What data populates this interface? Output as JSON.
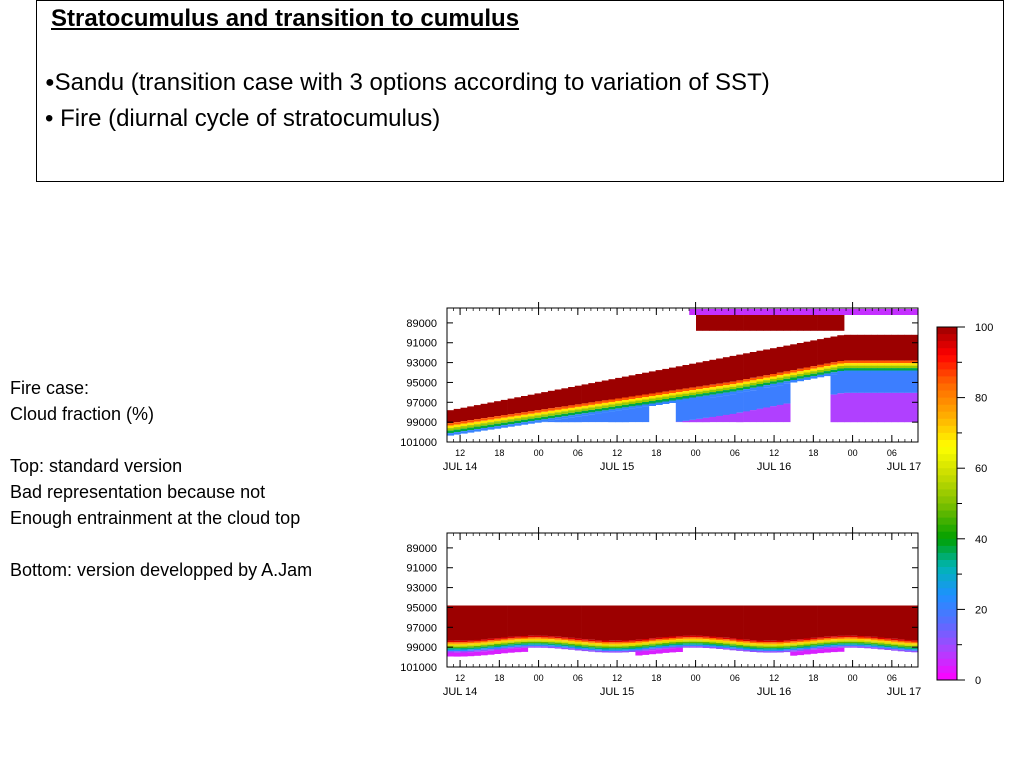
{
  "slide": {
    "title": "Stratocumulus and transition to cumulus",
    "bullets": [
      "Sandu (transition case with 3 options according to variation of SST)",
      "Fire (diurnal cycle of stratocumulus)"
    ],
    "notes": [
      "Fire case:",
      "Cloud fraction (%)",
      "",
      "Top: standard version",
      "Bad representation because not",
      "Enough entrainment at the cloud top",
      "",
      "Bottom: version developped by A.Jam"
    ]
  },
  "chart_data": [
    {
      "type": "heatmap",
      "name": "top",
      "y_tick_labels": [
        "89000",
        "91000",
        "93000",
        "95000",
        "97000",
        "99000",
        "101000"
      ],
      "x_hour_labels": [
        "12",
        "18",
        "00",
        "06",
        "12",
        "18",
        "00",
        "06",
        "12",
        "18",
        "00",
        "06"
      ],
      "x_day_labels": [
        "JUL 14",
        "JUL 15",
        "JUL 16",
        "JUL 17"
      ],
      "ylim": [
        101000,
        87500
      ],
      "cloud_top_start": 97800,
      "cloud_top_end": 90200,
      "cloud_thickness": 2600
    },
    {
      "type": "heatmap",
      "name": "bottom",
      "y_tick_labels": [
        "89000",
        "91000",
        "93000",
        "95000",
        "97000",
        "99000",
        "101000"
      ],
      "x_hour_labels": [
        "12",
        "18",
        "00",
        "06",
        "12",
        "18",
        "00",
        "06",
        "12",
        "18",
        "00",
        "06"
      ],
      "x_day_labels": [
        "JUL 14",
        "JUL 15",
        "JUL 16",
        "JUL 17"
      ],
      "ylim": [
        101000,
        87500
      ],
      "cloud_top": 94800,
      "cloud_base": 99300
    }
  ],
  "colorbar": {
    "tick_labels": [
      "100",
      "80",
      "60",
      "40",
      "20",
      "0"
    ],
    "range": [
      0,
      100
    ]
  }
}
